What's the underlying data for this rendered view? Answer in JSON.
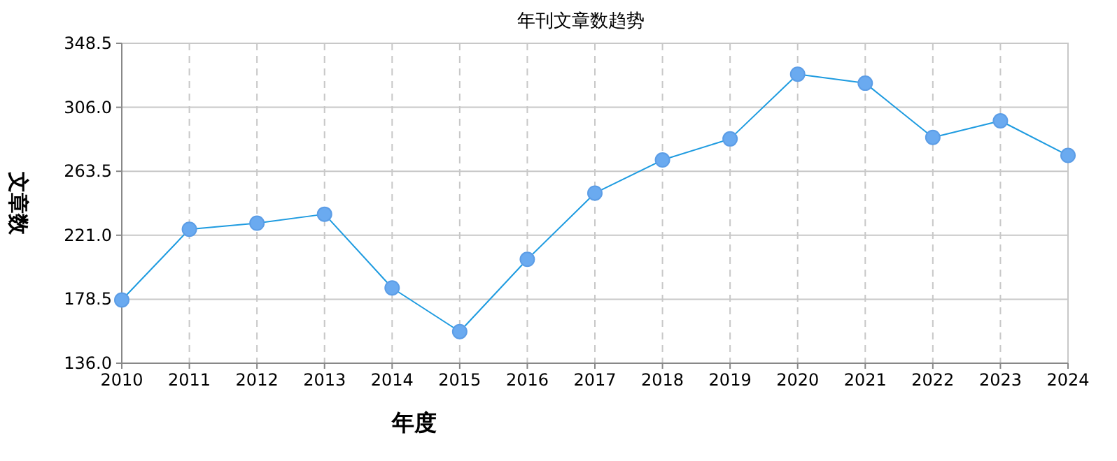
{
  "chart_data": {
    "type": "line",
    "title": "年刊文章数趋势",
    "xlabel": "年度",
    "ylabel": "文章数",
    "categories": [
      "2010",
      "2011",
      "2012",
      "2013",
      "2014",
      "2015",
      "2016",
      "2017",
      "2018",
      "2019",
      "2020",
      "2021",
      "2022",
      "2023",
      "2024"
    ],
    "series": [
      {
        "color": "#1e9be0",
        "values": [
          178,
          225,
          229,
          235,
          186,
          157,
          205,
          249,
          271,
          285,
          328,
          322,
          286,
          297,
          274
        ]
      }
    ],
    "ylim": [
      136,
      348.5
    ],
    "yticks": [
      {
        "value": 136,
        "label": "136.0"
      },
      178.5,
      {
        "value": 221,
        "label": "221.0"
      },
      263.5,
      {
        "value": 306,
        "label": "306.0"
      },
      348.5
    ],
    "grid": true,
    "marker": "circle",
    "line_style": "solid"
  }
}
